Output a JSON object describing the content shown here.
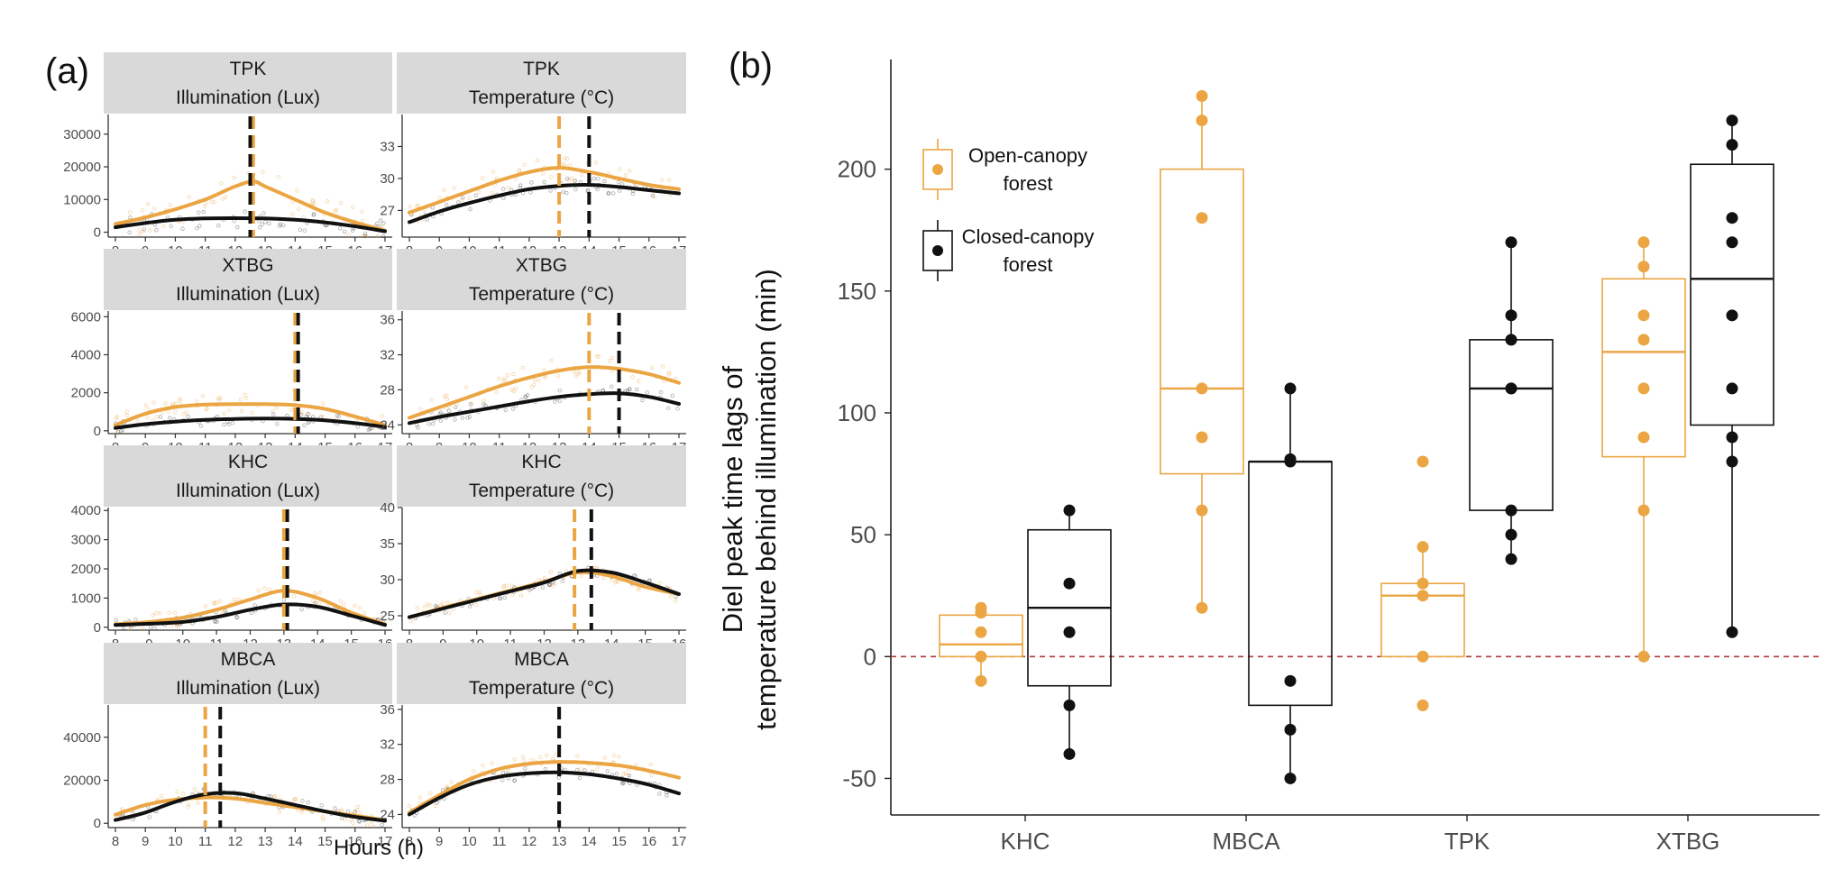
{
  "colors": {
    "open": "#EBA543",
    "closed": "#111111",
    "zero_line": "#B03A3A",
    "strip_bg": "#D9D9D9"
  },
  "chart_data": [
    {
      "panel": "(a)",
      "type": "line",
      "xlabel": "Hours (h)",
      "subplots": [
        {
          "site": "TPK",
          "variable": "Illumination (Lux)",
          "x_ticks": [
            8,
            9,
            10,
            11,
            12,
            13,
            14,
            15,
            16,
            17
          ],
          "ylim": [
            -1500,
            36000
          ],
          "y_ticks": [
            0,
            10000,
            20000,
            30000
          ],
          "y_tick_labels": [
            "0",
            "10000",
            "20000",
            "30000"
          ],
          "series": [
            {
              "name": "Open-canopy forest",
              "x": [
                8,
                9,
                10,
                11,
                12,
                12.6,
                13,
                14,
                15,
                16,
                17
              ],
              "y": [
                2500,
                4500,
                7000,
                10000,
                14000,
                15500,
                14000,
                10000,
                6000,
                3000,
                500
              ]
            },
            {
              "name": "Closed-canopy forest",
              "x": [
                8,
                9,
                10,
                11,
                12,
                13,
                14,
                15,
                16,
                17
              ],
              "y": [
                1500,
                2800,
                3800,
                4200,
                4300,
                4200,
                3800,
                3000,
                1800,
                300
              ]
            }
          ],
          "peak_open": 12.6,
          "peak_closed": 12.5,
          "scatter_spread": 9000
        },
        {
          "site": "TPK",
          "variable": "Temperature (°C)",
          "x_ticks": [
            8,
            9,
            10,
            11,
            12,
            13,
            14,
            15,
            16,
            17
          ],
          "ylim": [
            24.5,
            36
          ],
          "y_ticks": [
            27,
            30,
            33
          ],
          "y_tick_labels": [
            "27",
            "30",
            "33"
          ],
          "series": [
            {
              "name": "Open-canopy forest",
              "x": [
                8,
                9,
                10,
                11,
                12,
                13,
                14,
                15,
                16,
                17
              ],
              "y": [
                26.8,
                27.8,
                28.8,
                29.8,
                30.6,
                31.0,
                30.6,
                30.0,
                29.4,
                29.0
              ]
            },
            {
              "name": "Closed-canopy forest",
              "x": [
                8,
                9,
                10,
                11,
                12,
                13,
                14,
                15,
                16,
                17
              ],
              "y": [
                25.9,
                26.9,
                27.7,
                28.4,
                29.0,
                29.3,
                29.4,
                29.2,
                28.9,
                28.6
              ]
            }
          ],
          "peak_open": 13.0,
          "peak_closed": 14.0,
          "scatter_spread": 2.0
        },
        {
          "site": "XTBG",
          "variable": "Illumination (Lux)",
          "x_ticks": [
            8,
            9,
            10,
            11,
            12,
            13,
            14,
            15,
            16,
            17
          ],
          "ylim": [
            -150,
            6300
          ],
          "y_ticks": [
            0,
            2000,
            4000,
            6000
          ],
          "y_tick_labels": [
            "0",
            "2000",
            "4000",
            "6000"
          ],
          "series": [
            {
              "name": "Open-canopy forest",
              "x": [
                8,
                9,
                10,
                11,
                12,
                13,
                14,
                15,
                16,
                17
              ],
              "y": [
                300,
                900,
                1250,
                1380,
                1400,
                1400,
                1350,
                1150,
                750,
                300
              ]
            },
            {
              "name": "Closed-canopy forest",
              "x": [
                8,
                9,
                10,
                11,
                12,
                13,
                14,
                15,
                16,
                17
              ],
              "y": [
                150,
                350,
                480,
                570,
                620,
                640,
                620,
                550,
                400,
                200
              ]
            }
          ],
          "peak_open": 14.0,
          "peak_closed": 14.1,
          "scatter_spread": 900
        },
        {
          "site": "XTBG",
          "variable": "Temperature (°C)",
          "x_ticks": [
            8,
            9,
            10,
            11,
            12,
            13,
            14,
            15,
            16,
            17
          ],
          "ylim": [
            23,
            37
          ],
          "y_ticks": [
            24,
            28,
            32,
            36
          ],
          "y_tick_labels": [
            "24",
            "28",
            "32",
            "36"
          ],
          "series": [
            {
              "name": "Open-canopy forest",
              "x": [
                8,
                9,
                10,
                11,
                12,
                13,
                14,
                15,
                16,
                17
              ],
              "y": [
                24.8,
                26.0,
                27.2,
                28.4,
                29.4,
                30.2,
                30.6,
                30.4,
                29.8,
                28.8
              ]
            },
            {
              "name": "Closed-canopy forest",
              "x": [
                8,
                9,
                10,
                11,
                12,
                13,
                14,
                15,
                16,
                17
              ],
              "y": [
                24.2,
                24.9,
                25.5,
                26.1,
                26.7,
                27.2,
                27.5,
                27.6,
                27.2,
                26.4
              ]
            }
          ],
          "peak_open": 14.0,
          "peak_closed": 15.0,
          "scatter_spread": 2.5
        },
        {
          "site": "KHC",
          "variable": "Illumination (Lux)",
          "x_ticks": [
            8,
            9,
            10,
            11,
            12,
            13,
            14,
            15,
            16
          ],
          "ylim": [
            -100,
            4100
          ],
          "y_ticks": [
            0,
            1000,
            2000,
            3000,
            4000
          ],
          "y_tick_labels": [
            "0",
            "1000",
            "2000",
            "3000",
            "4000"
          ],
          "series": [
            {
              "name": "Open-canopy forest",
              "x": [
                8,
                9,
                10,
                11,
                12,
                13,
                14,
                15,
                16
              ],
              "y": [
                100,
                180,
                330,
                600,
                950,
                1250,
                1000,
                500,
                100
              ]
            },
            {
              "name": "Closed-canopy forest",
              "x": [
                8,
                9,
                10,
                11,
                12,
                13,
                14,
                15,
                16
              ],
              "y": [
                80,
                120,
                180,
                350,
                600,
                780,
                700,
                400,
                80
              ]
            }
          ],
          "peak_open": 13.0,
          "peak_closed": 13.1,
          "scatter_spread": 500
        },
        {
          "site": "KHC",
          "variable": "Temperature (°C)",
          "x_ticks": [
            8,
            9,
            10,
            11,
            12,
            13,
            14,
            15,
            16
          ],
          "ylim": [
            23,
            40
          ],
          "y_ticks": [
            25,
            30,
            35,
            40
          ],
          "y_tick_labels": [
            "25",
            "30",
            "35",
            "40"
          ],
          "series": [
            {
              "name": "Open-canopy forest",
              "x": [
                8,
                9,
                10,
                11,
                12,
                13,
                14,
                15,
                16
              ],
              "y": [
                24.8,
                26.1,
                27.3,
                28.5,
                29.7,
                31.0,
                30.5,
                29.0,
                28.0
              ]
            },
            {
              "name": "Closed-canopy forest",
              "x": [
                8,
                9,
                10,
                11,
                12,
                13,
                14,
                15,
                16
              ],
              "y": [
                24.8,
                26.0,
                27.2,
                28.4,
                29.6,
                31.2,
                31.0,
                29.6,
                28.0
              ]
            }
          ],
          "peak_open": 12.9,
          "peak_closed": 13.4,
          "scatter_spread": 2.0
        },
        {
          "site": "MBCA",
          "variable": "Illumination (Lux)",
          "x_ticks": [
            8,
            9,
            10,
            11,
            12,
            13,
            14,
            15,
            16,
            17
          ],
          "ylim": [
            -2000,
            55000
          ],
          "y_ticks": [
            0,
            20000,
            40000
          ],
          "y_tick_labels": [
            "0",
            "20000",
            "40000"
          ],
          "series": [
            {
              "name": "Open-canopy forest",
              "x": [
                8,
                9,
                10,
                11,
                12,
                13,
                14,
                15,
                16,
                17
              ],
              "y": [
                4000,
                8500,
                11000,
                12000,
                11500,
                9500,
                7500,
                5500,
                3500,
                1500
              ]
            },
            {
              "name": "Closed-canopy forest",
              "x": [
                8,
                9,
                10,
                11,
                12,
                13,
                14,
                15,
                16,
                17
              ],
              "y": [
                1500,
                5000,
                10000,
                13500,
                14000,
                11500,
                8500,
                5500,
                3000,
                1200
              ]
            }
          ],
          "peak_open": 11.0,
          "peak_closed": 11.5,
          "scatter_spread": 8000
        },
        {
          "site": "MBCA",
          "variable": "Temperature (°C)",
          "x_ticks": [
            8,
            9,
            10,
            11,
            12,
            13,
            14,
            15,
            16,
            17
          ],
          "ylim": [
            22.5,
            36.5
          ],
          "y_ticks": [
            24,
            28,
            32,
            36
          ],
          "y_tick_labels": [
            "24",
            "28",
            "32",
            "36"
          ],
          "series": [
            {
              "name": "Open-canopy forest",
              "x": [
                8,
                9,
                10,
                11,
                12,
                13,
                14,
                15,
                16,
                17
              ],
              "y": [
                24.2,
                26.2,
                28.0,
                29.2,
                29.8,
                30.0,
                29.9,
                29.6,
                29.0,
                28.2
              ]
            },
            {
              "name": "Closed-canopy forest",
              "x": [
                8,
                9,
                10,
                11,
                12,
                13,
                14,
                15,
                16,
                17
              ],
              "y": [
                24.0,
                25.9,
                27.4,
                28.3,
                28.7,
                28.8,
                28.6,
                28.1,
                27.4,
                26.4
              ]
            }
          ],
          "peak_open": 13.0,
          "peak_closed": 13.0,
          "scatter_spread": 2.0
        }
      ]
    },
    {
      "panel": "(b)",
      "type": "box",
      "ylabel_line1": "Diel peak time lags of",
      "ylabel_line2": "temperature behind illumination (min)",
      "categories": [
        "KHC",
        "MBCA",
        "TPK",
        "XTBG"
      ],
      "ylim": [
        -65,
        245
      ],
      "y_ticks": [
        -50,
        0,
        50,
        100,
        150,
        200
      ],
      "y_tick_labels": [
        "-50",
        "0",
        "50",
        "100",
        "150",
        "200"
      ],
      "reference_line": 0,
      "legend": {
        "position": "top-left",
        "entries": [
          {
            "label_line1": "Open-canopy",
            "label_line2": "forest"
          },
          {
            "label_line1": "Closed-canopy",
            "label_line2": "forest"
          }
        ]
      },
      "series": [
        {
          "name": "Open-canopy forest",
          "boxes": [
            {
              "category": "KHC",
              "whisker_low": -10,
              "q1": 0,
              "median": 5,
              "q3": 17,
              "whisker_high": 20,
              "points": [
                -10,
                0,
                10,
                18,
                20
              ]
            },
            {
              "category": "MBCA",
              "whisker_low": 20,
              "q1": 75,
              "median": 110,
              "q3": 200,
              "whisker_high": 230,
              "points": [
                20,
                60,
                90,
                110,
                180,
                220,
                230
              ]
            },
            {
              "category": "TPK",
              "whisker_low": 0,
              "q1": 0,
              "median": 25,
              "q3": 30,
              "whisker_high": 45,
              "points": [
                -20,
                0,
                25,
                30,
                45,
                80
              ]
            },
            {
              "category": "XTBG",
              "whisker_low": 0,
              "q1": 82,
              "median": 125,
              "q3": 155,
              "whisker_high": 170,
              "points": [
                0,
                60,
                90,
                110,
                130,
                140,
                160,
                170
              ]
            }
          ]
        },
        {
          "name": "Closed-canopy forest",
          "boxes": [
            {
              "category": "KHC",
              "whisker_low": -40,
              "q1": -12,
              "median": 20,
              "q3": 52,
              "whisker_high": 60,
              "points": [
                -40,
                -20,
                10,
                30,
                60
              ]
            },
            {
              "category": "MBCA",
              "whisker_low": -50,
              "q1": -20,
              "median": 80,
              "q3": 80,
              "whisker_high": 110,
              "points": [
                -50,
                -30,
                -10,
                80,
                81,
                110
              ]
            },
            {
              "category": "TPK",
              "whisker_low": 40,
              "q1": 60,
              "median": 110,
              "q3": 130,
              "whisker_high": 170,
              "points": [
                40,
                50,
                60,
                110,
                110,
                130,
                140,
                170
              ]
            },
            {
              "category": "XTBG",
              "whisker_low": 10,
              "q1": 95,
              "median": 155,
              "q3": 202,
              "whisker_high": 220,
              "points": [
                10,
                80,
                90,
                110,
                140,
                170,
                180,
                210,
                220
              ]
            }
          ]
        }
      ]
    }
  ]
}
